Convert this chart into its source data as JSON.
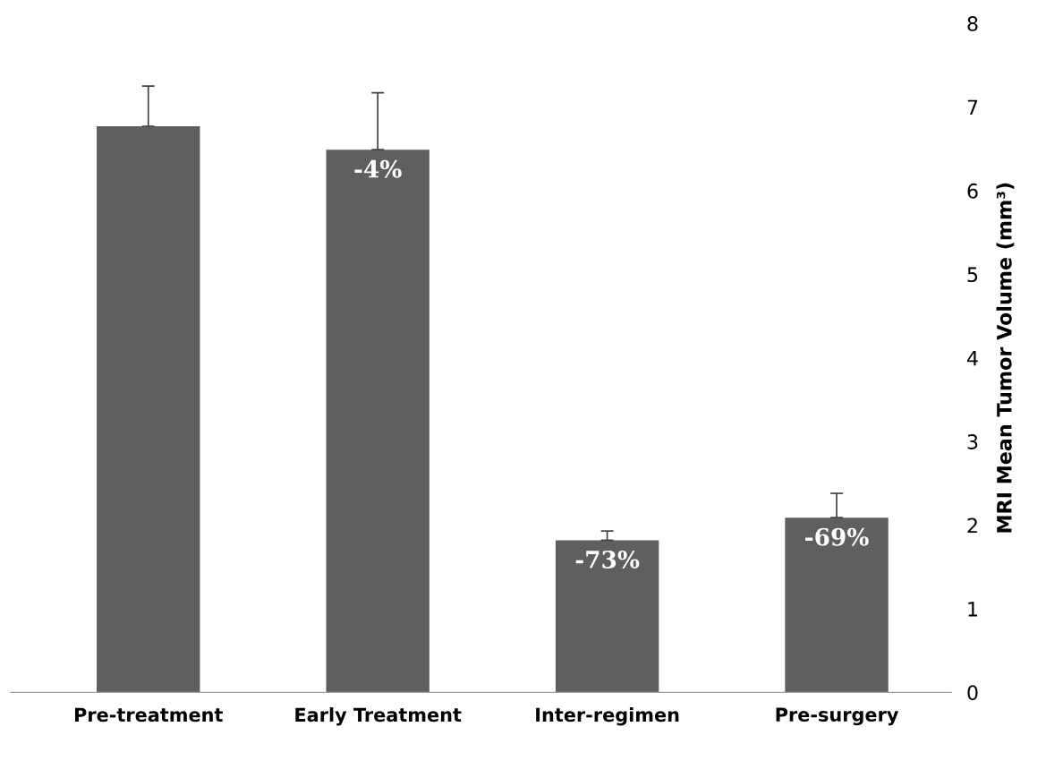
{
  "chart_data": {
    "type": "bar",
    "ylabel": "MRI Mean Tumor Volume (mm³)",
    "categories": [
      "Pre-treatment",
      "Early Treatment",
      "Inter-regimen",
      "Pre-surgery"
    ],
    "values": [
      6.77,
      6.49,
      1.82,
      2.09
    ],
    "errors": [
      [
        6.77,
        7.25
      ],
      [
        6.49,
        7.17
      ],
      [
        1.82,
        1.93
      ],
      [
        2.09,
        2.38
      ]
    ],
    "annotations": [
      {
        "text": "-4%",
        "x": "Early Treatment",
        "y": 6.49
      },
      {
        "text": "-73%",
        "x": "Inter-regimen",
        "y": 1.82
      },
      {
        "text": "-69%",
        "x": "Pre-surgery",
        "y": 2.09
      }
    ],
    "color": "#5f5f5f",
    "ylim": [
      0,
      8
    ],
    "yticks": [
      0,
      1,
      2,
      3,
      4,
      5,
      6,
      7,
      8
    ],
    "grid": false,
    "legend": false
  }
}
